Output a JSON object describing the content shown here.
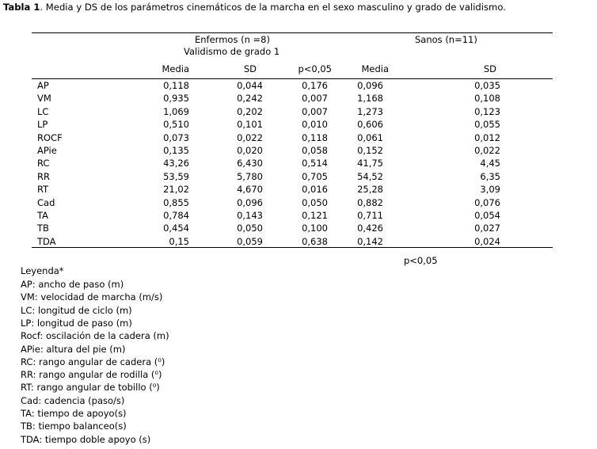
{
  "title": {
    "bold": "Tabla 1",
    "rest": ". Media y DS de los parámetros cinemáticos de la marcha en el sexo masculino y grado de validismo."
  },
  "table": {
    "group1": "Enfermos (n =8)",
    "group1_sub": "Validismo de grado 1",
    "group2": "Sanos (n=11)",
    "columns": [
      "Media",
      "SD",
      "p<0,05",
      "Media",
      "SD"
    ],
    "rows": [
      [
        "AP",
        "0,118",
        "0,044",
        "0,176",
        "0,096",
        "0,035"
      ],
      [
        "VM",
        "0,935",
        "0,242",
        "0,007",
        "1,168",
        "0,108"
      ],
      [
        "LC",
        "1,069",
        "0,202",
        "0,007",
        "1,273",
        "0,123"
      ],
      [
        "LP",
        "0,510",
        "0,101",
        "0,010",
        "0,606",
        "0,055"
      ],
      [
        "ROCF",
        "0,073",
        "0,022",
        "0,118",
        "0,061",
        "0,012"
      ],
      [
        "APie",
        "0,135",
        "0,020",
        "0,058",
        "0,152",
        "0,022"
      ],
      [
        "RC",
        "43,26",
        "6,430",
        "0,514",
        "41,75",
        "4,45"
      ],
      [
        "RR",
        "53,59",
        "5,780",
        "0,705",
        "54,52",
        "6,35"
      ],
      [
        "RT",
        "21,02",
        "4,670",
        "0,016",
        "25,28",
        "3,09"
      ],
      [
        "Cad",
        "0,855",
        "0,096",
        "0,050",
        "0,882",
        "0,076"
      ],
      [
        "TA",
        "0,784",
        "0,143",
        "0,121",
        "0,711",
        "0,054"
      ],
      [
        "TB",
        "0,454",
        "0,050",
        "0,100",
        "0,426",
        "0,027"
      ],
      [
        "TDA",
        "0,15",
        "0,059",
        "0,638",
        "0,142",
        "0,024"
      ]
    ],
    "footnote": "p<0,05"
  },
  "legend": {
    "title": "Leyenda*",
    "items": [
      "AP: ancho de paso (m)",
      "VM: velocidad de marcha (m/s)",
      "LC: longitud de ciclo (m)",
      "LP: longitud de paso (m)",
      "Rocf: oscilación de la cadera (m)",
      "APie: altura del pie (m)",
      "RC: rango angular de cadera (⁰)",
      "RR: rango angular de rodilla (⁰)",
      "RT: rango angular de tobillo (⁰)",
      "Cad: cadencia (paso/s)",
      "TA: tiempo de apoyo(s)",
      "TB: tiempo balanceo(s)",
      "TDA: tiempo doble apoyo (s)"
    ]
  }
}
